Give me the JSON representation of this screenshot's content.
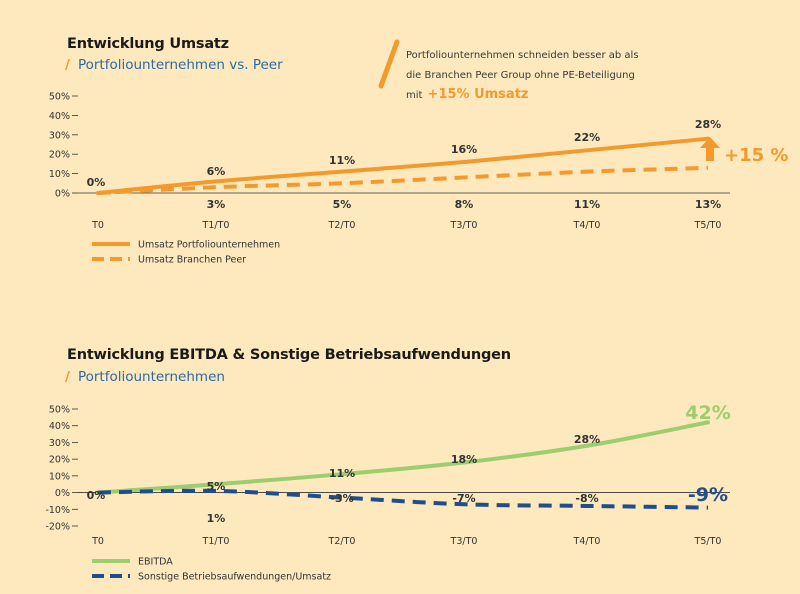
{
  "chart_data": [
    {
      "type": "line",
      "title": "Entwicklung Umsatz",
      "subtitle": "Portfoliounternehmen vs. Peer",
      "note": {
        "text": "Portfoliounternehmen schneiden besser ab als die Branchen Peer Group ohne PE-Beteiligung mit",
        "highlight": "+15% Umsatz"
      },
      "categories": [
        "T0",
        "T1/T0",
        "T2/T0",
        "T3/T0",
        "T4/T0",
        "T5/T0"
      ],
      "ylim": [
        0,
        50
      ],
      "yticks": [
        "0%",
        "10%",
        "20%",
        "30%",
        "40%",
        "50%"
      ],
      "series": [
        {
          "name": "Umsatz Portfoliounternehmen",
          "values": [
            0,
            6,
            11,
            16,
            22,
            28
          ],
          "labels": [
            "0%",
            "6%",
            "11%",
            "16%",
            "22%",
            "28%"
          ],
          "style": "solid",
          "color": "#f39a2e"
        },
        {
          "name": "Umsatz Branchen Peer",
          "values": [
            0,
            3,
            5,
            8,
            11,
            13
          ],
          "labels": [
            "",
            "3%",
            "5%",
            "8%",
            "11%",
            "13%"
          ],
          "style": "dashed",
          "color": "#f39a2e"
        }
      ],
      "annotation": {
        "text": "+15 %",
        "color": "#f39a2e"
      }
    },
    {
      "type": "line",
      "title": "Entwicklung EBITDA & Sonstige Betriebsaufwendungen",
      "subtitle": "Portfoliounternehmen",
      "categories": [
        "T0",
        "T1/T0",
        "T2/T0",
        "T3/T0",
        "T4/T0",
        "T5/T0"
      ],
      "ylim": [
        -20,
        50
      ],
      "yticks": [
        "-20%",
        "-10%",
        "0%",
        "10%",
        "20%",
        "30%",
        "40%",
        "50%"
      ],
      "series": [
        {
          "name": "EBITDA",
          "values": [
            0,
            5,
            11,
            18,
            28,
            42
          ],
          "labels": [
            "0%",
            "5%",
            "11%",
            "18%",
            "28%",
            "42%"
          ],
          "style": "solid",
          "color": "#9ccd6e"
        },
        {
          "name": "Sonstige Betriebsaufwendungen/Umsatz",
          "values": [
            0,
            1,
            -3,
            -7,
            -8,
            -9
          ],
          "labels": [
            "",
            "1%",
            "-3%",
            "-7%",
            "-8%",
            "-9%"
          ],
          "style": "dashed",
          "color": "#1f4e8c"
        }
      ]
    }
  ]
}
